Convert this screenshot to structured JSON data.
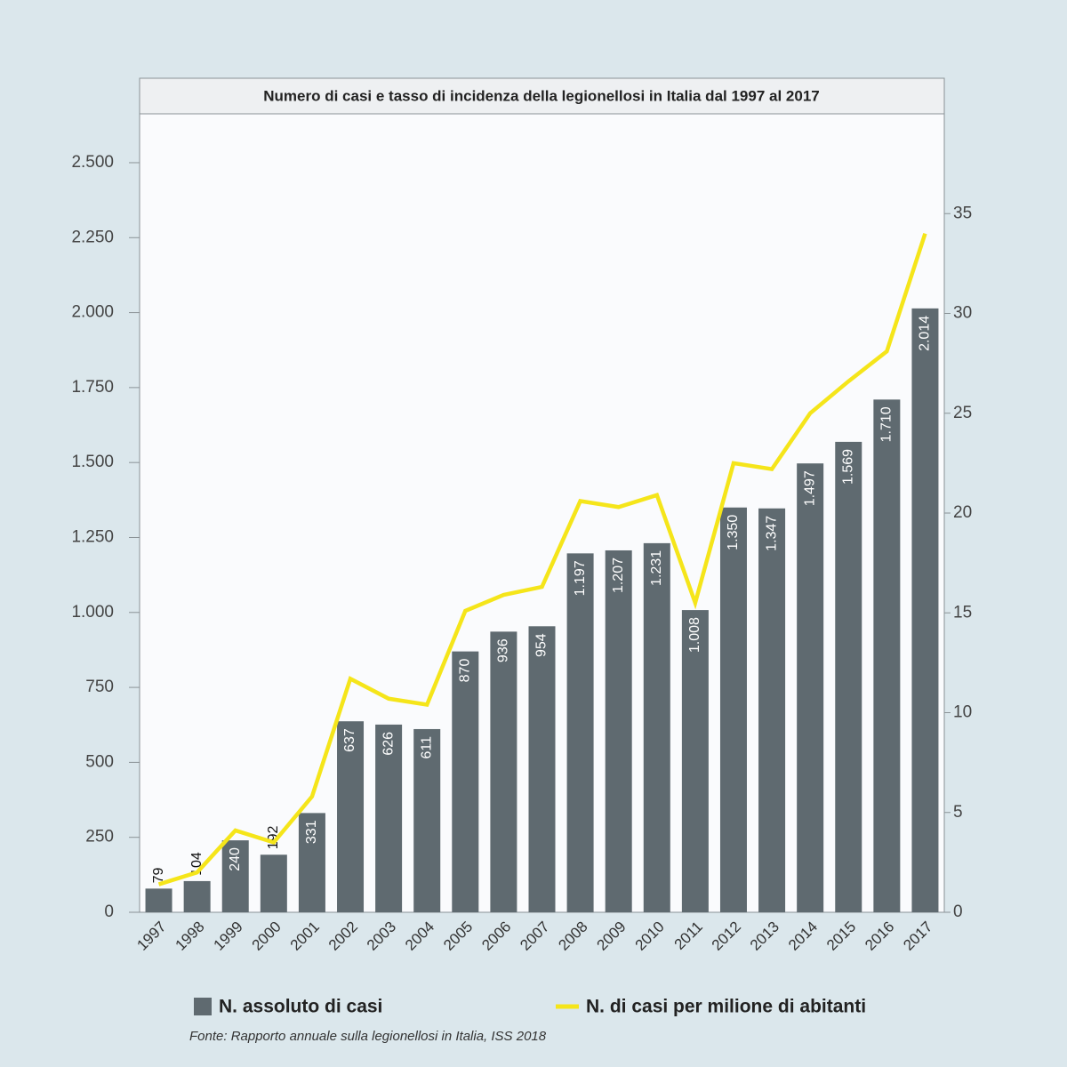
{
  "chart_data": {
    "type": "bar",
    "title": "Numero di casi e tasso di incidenza della legionellosi in Italia dal 1997 al 2017",
    "source": "Fonte: Rapporto annuale sulla legionellosi in Italia, ISS 2018",
    "categories": [
      "1997",
      "1998",
      "1999",
      "2000",
      "2001",
      "2002",
      "2003",
      "2004",
      "2005",
      "2006",
      "2007",
      "2008",
      "2009",
      "2010",
      "2011",
      "2012",
      "2013",
      "2014",
      "2015",
      "2016",
      "2017"
    ],
    "series": [
      {
        "name": "N. assoluto di casi",
        "type": "bar",
        "color": "#5f6a70",
        "values": [
          79,
          104,
          240,
          192,
          331,
          637,
          626,
          611,
          870,
          936,
          954,
          1197,
          1207,
          1231,
          1008,
          1350,
          1347,
          1497,
          1569,
          1710,
          2014
        ],
        "value_labels": [
          "79",
          "104",
          "240",
          "192",
          "331",
          "637",
          "626",
          "611",
          "870",
          "936",
          "954",
          "1.197",
          "1.207",
          "1.231",
          "1.008",
          "1.350",
          "1.347",
          "1.497",
          "1.569",
          "1.710",
          "2.014"
        ]
      },
      {
        "name": "N. di casi per milione di abitanti",
        "type": "line",
        "color": "#f5e51a",
        "axis": "y2",
        "values": [
          1.4,
          2.0,
          4.1,
          3.5,
          5.8,
          11.7,
          10.7,
          10.4,
          15.1,
          15.9,
          16.3,
          20.6,
          20.3,
          20.9,
          15.5,
          22.5,
          22.2,
          25.0,
          26.6,
          28.1,
          34.0
        ]
      }
    ],
    "ylim": [
      0,
      2663
    ],
    "yticks": [
      0,
      250,
      500,
      750,
      {
        "value": 1000,
        "label": "1.000"
      },
      {
        "value": 1250,
        "label": "1.250"
      },
      {
        "value": 1500,
        "label": "1.500"
      },
      {
        "value": 1750,
        "label": "1.750"
      },
      {
        "value": 2000,
        "label": "2.000"
      },
      {
        "value": 2250,
        "label": "2.250"
      },
      {
        "value": 2500,
        "label": "2.500"
      }
    ],
    "y2lim": [
      0,
      40
    ],
    "y2ticks": [
      0,
      5,
      10,
      15,
      20,
      25,
      30,
      35
    ]
  }
}
